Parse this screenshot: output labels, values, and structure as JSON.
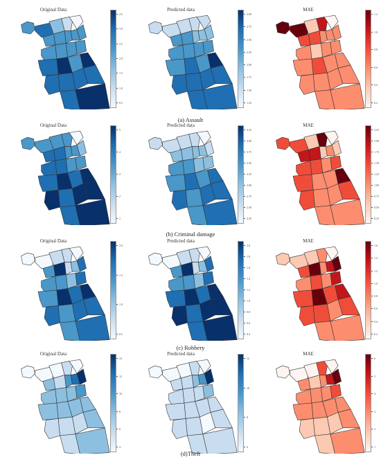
{
  "colors": {
    "blues": [
      "#f4f9fe",
      "#c9ddf0",
      "#8dc0e0",
      "#4a97c9",
      "#1f6fb2",
      "#08306b"
    ],
    "reds": [
      "#fff5f0",
      "#fcc9b3",
      "#fc8d6f",
      "#ef4d3a",
      "#c2161b",
      "#67000d"
    ],
    "border": "#333333"
  },
  "chart_data": [
    {
      "type": "choropleth",
      "caption": "(a) Assault",
      "panels": [
        {
          "title": "Original Data",
          "cmap": "blues",
          "ticks": [
            "3.5",
            "3.0",
            "2.5",
            "2.0",
            "1.5",
            "1.0",
            "0.5"
          ],
          "values": [
            3,
            4,
            2,
            1,
            0,
            3,
            3,
            3,
            3,
            3,
            3,
            3,
            3,
            3,
            4,
            5,
            3,
            5,
            4,
            4,
            4,
            4,
            4,
            5
          ]
        },
        {
          "title": "Predicted data",
          "cmap": "blues",
          "ticks": [
            "3.00",
            "2.75",
            "2.50",
            "2.25",
            "2.00",
            "1.75",
            "1.50",
            "1.25"
          ],
          "values": [
            1,
            1,
            1,
            1,
            1,
            3,
            3,
            2,
            2,
            2,
            3,
            3,
            3,
            3,
            3,
            4,
            3,
            5,
            4,
            4,
            4,
            4,
            4,
            4
          ]
        },
        {
          "title": "MAE",
          "cmap": "reds",
          "ticks": [
            "1.2",
            "1.0",
            "0.8",
            "0.6",
            "0.4",
            "0.2"
          ],
          "values": [
            5,
            5,
            1,
            4,
            0,
            3,
            3,
            2,
            2,
            2,
            2,
            1,
            2,
            2,
            2,
            3,
            2,
            2,
            2,
            2,
            2,
            2,
            2,
            2
          ]
        }
      ]
    },
    {
      "type": "choropleth",
      "caption": "(b) Criminal damage",
      "panels": [
        {
          "title": "Original Data",
          "cmap": "blues",
          "ticks": [
            "5",
            "4",
            "3",
            "2",
            "1"
          ],
          "values": [
            3,
            3,
            3,
            3,
            0,
            4,
            4,
            3,
            3,
            2,
            4,
            4,
            3,
            3,
            4,
            5,
            4,
            5,
            5,
            4,
            5,
            5,
            4,
            5
          ]
        },
        {
          "title": "Predicted data",
          "cmap": "blues",
          "ticks": [
            "4.25",
            "4.00",
            "3.75",
            "3.50",
            "3.25",
            "3.00",
            "2.75",
            "2.50",
            "2.25"
          ],
          "values": [
            1,
            1,
            1,
            1,
            0,
            2,
            2,
            2,
            2,
            1,
            3,
            3,
            2,
            2,
            3,
            4,
            3,
            4,
            4,
            3,
            4,
            4,
            3,
            4
          ]
        },
        {
          "title": "MAE",
          "cmap": "reds",
          "ticks": [
            "2.25",
            "2.00",
            "1.75",
            "1.50",
            "1.25",
            "1.00",
            "0.75",
            "0.50",
            "0.25"
          ],
          "values": [
            3,
            3,
            1,
            5,
            0,
            4,
            4,
            1,
            2,
            1,
            3,
            3,
            2,
            3,
            3,
            2,
            2,
            5,
            3,
            2,
            2,
            3,
            2,
            2
          ]
        }
      ]
    },
    {
      "type": "choropleth",
      "caption": "(c) Robbery",
      "panels": [
        {
          "title": "Original Data",
          "cmap": "blues",
          "ticks": [
            "2.0",
            "1.5",
            "1.0",
            "0.5"
          ],
          "values": [
            0,
            0,
            1,
            1,
            0,
            3,
            5,
            1,
            2,
            4,
            3,
            3,
            2,
            4,
            3,
            5,
            4,
            5,
            4,
            3,
            4,
            4,
            3,
            4
          ]
        },
        {
          "title": "Predicted data",
          "cmap": "blues",
          "ticks": [
            "2.0",
            "1.8",
            "1.6",
            "1.4",
            "1.2",
            "1.0",
            "0.8",
            "0.6",
            "0.4"
          ],
          "values": [
            0,
            0,
            1,
            1,
            0,
            3,
            5,
            1,
            2,
            4,
            3,
            3,
            2,
            4,
            4,
            5,
            4,
            5,
            5,
            4,
            5,
            5,
            4,
            5
          ]
        },
        {
          "title": "MAE",
          "cmap": "reds",
          "ticks": [
            "1.6",
            "1.4",
            "1.2",
            "1.0",
            "0.8",
            "0.6",
            "0.4",
            "0.2"
          ],
          "values": [
            1,
            1,
            1,
            2,
            0,
            3,
            5,
            2,
            4,
            5,
            2,
            3,
            2,
            4,
            3,
            5,
            3,
            4,
            3,
            3,
            2,
            3,
            2,
            2
          ]
        }
      ]
    },
    {
      "type": "choropleth",
      "caption": "(d)Theft",
      "panels": [
        {
          "title": "Original Data",
          "cmap": "blues",
          "ticks": [
            "14",
            "12",
            "10",
            "8",
            "6",
            "4"
          ],
          "values": [
            0,
            0,
            0,
            1,
            0,
            2,
            1,
            3,
            4,
            5,
            2,
            2,
            2,
            3,
            2,
            2,
            2,
            2,
            1,
            1,
            1,
            2,
            1,
            2
          ]
        },
        {
          "title": "Predicted data",
          "cmap": "blues",
          "ticks": [
            "12",
            "10",
            "8",
            "6"
          ],
          "values": [
            0,
            0,
            0,
            1,
            0,
            1,
            1,
            2,
            3,
            5,
            1,
            1,
            1,
            2,
            1,
            1,
            1,
            1,
            1,
            1,
            0,
            1,
            1,
            1
          ]
        },
        {
          "title": "MAE",
          "cmap": "reds",
          "ticks": [
            "6",
            "5",
            "4",
            "3",
            "2",
            "1"
          ],
          "values": [
            0,
            0,
            0,
            3,
            0,
            2,
            1,
            2,
            4,
            5,
            2,
            2,
            2,
            3,
            2,
            2,
            2,
            2,
            1,
            1,
            1,
            2,
            1,
            2
          ]
        }
      ]
    }
  ]
}
